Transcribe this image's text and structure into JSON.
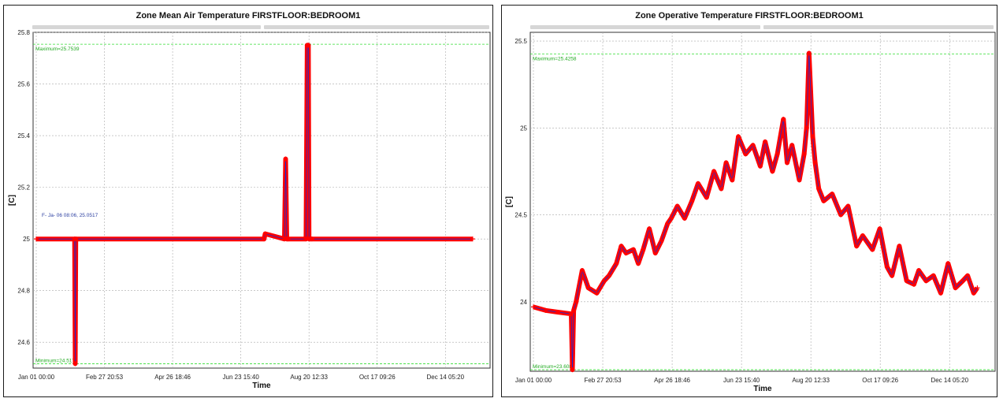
{
  "colors": {
    "series": "#ff0000",
    "series_line": "#1a2bd0",
    "grid": "#a9a9a9",
    "limit": "#33dd33",
    "annotation": "#2b3fa0"
  },
  "chart_data": [
    {
      "type": "line",
      "title": "Zone Mean Air Temperature  FIRSTFLOOR:BEDROOM1",
      "xlabel": "Time",
      "ylabel": "[C]",
      "ylim": [
        24.5,
        25.8
      ],
      "xlim_days": [
        0,
        364
      ],
      "x_ticks": [
        "Jan 01 00:00",
        "Feb 27 20:53",
        "Apr 26 18:46",
        "Jun 23 15:40",
        "Aug 20 12:33",
        "Oct 17 09:26",
        "Dec 14 05:20"
      ],
      "y_ticks": [
        "24.6",
        "24.8",
        "25",
        "25.2",
        "25.4",
        "25.6",
        "25.8"
      ],
      "grid": true,
      "max_label": "Maximum=25.7539",
      "min_label": "Minimum=24.517",
      "max_value": 25.7539,
      "min_value": 24.517,
      "annotation": "F- Ja- 06 08:06, 25.0517",
      "series": [
        {
          "x_day": [
            0,
            32,
            32.5,
            33,
            190,
            191,
            207,
            208,
            209,
            210,
            225,
            226,
            227,
            227.5,
            229,
            230,
            364
          ],
          "values": [
            25.0,
            25.0,
            24.517,
            25.0,
            25.0,
            25.02,
            25.0,
            25.31,
            25.0,
            25.0,
            25.0,
            25.75,
            25.75,
            25.0,
            25.0,
            25.0,
            25.0
          ]
        }
      ]
    },
    {
      "type": "line",
      "title": "Zone Operative Temperature  FIRSTFLOOR:BEDROOM1",
      "xlabel": "Time",
      "ylabel": "[C]",
      "ylim": [
        23.6,
        25.55
      ],
      "xlim_days": [
        0,
        364
      ],
      "x_ticks": [
        "Jan 01 00:00",
        "Feb 27 20:53",
        "Apr 26 18:46",
        "Jun 23 15:40",
        "Aug 20 12:33",
        "Oct 17 09:26",
        "Dec 14 05:20"
      ],
      "y_ticks": [
        "24",
        "24.5",
        "25",
        "25.5"
      ],
      "grid": true,
      "max_label": "Maximum=25.4258",
      "min_label": "Minimum=23.6087",
      "max_value": 25.4258,
      "min_value": 23.6087,
      "series": [
        {
          "x_day": [
            0,
            10,
            20,
            31,
            32,
            33,
            35,
            40,
            45,
            52,
            58,
            62,
            68,
            72,
            76,
            82,
            86,
            90,
            95,
            100,
            105,
            110,
            113,
            118,
            124,
            130,
            135,
            142,
            148,
            154,
            158,
            163,
            168,
            174,
            180,
            186,
            190,
            196,
            200,
            205,
            208,
            212,
            218,
            222,
            224,
            226,
            229,
            231,
            234,
            238,
            245,
            252,
            258,
            265,
            270,
            278,
            284,
            290,
            294,
            300,
            306,
            312,
            316,
            322,
            328,
            334,
            340,
            346,
            352,
            356,
            361,
            364
          ],
          "values": [
            23.97,
            23.95,
            23.94,
            23.93,
            23.6087,
            23.95,
            24.0,
            24.18,
            24.08,
            24.05,
            24.12,
            24.15,
            24.22,
            24.32,
            24.28,
            24.3,
            24.22,
            24.3,
            24.42,
            24.28,
            24.35,
            24.45,
            24.48,
            24.55,
            24.48,
            24.58,
            24.68,
            24.6,
            24.75,
            24.65,
            24.8,
            24.7,
            24.95,
            24.85,
            24.9,
            24.78,
            24.92,
            24.75,
            24.85,
            25.05,
            24.8,
            24.9,
            24.7,
            24.85,
            25.0,
            25.43,
            24.95,
            24.8,
            24.65,
            24.58,
            24.62,
            24.5,
            24.55,
            24.32,
            24.38,
            24.3,
            24.42,
            24.2,
            24.15,
            24.32,
            24.12,
            24.1,
            24.18,
            24.12,
            24.15,
            24.05,
            24.22,
            24.08,
            24.12,
            24.15,
            24.05,
            24.08
          ]
        }
      ]
    }
  ]
}
